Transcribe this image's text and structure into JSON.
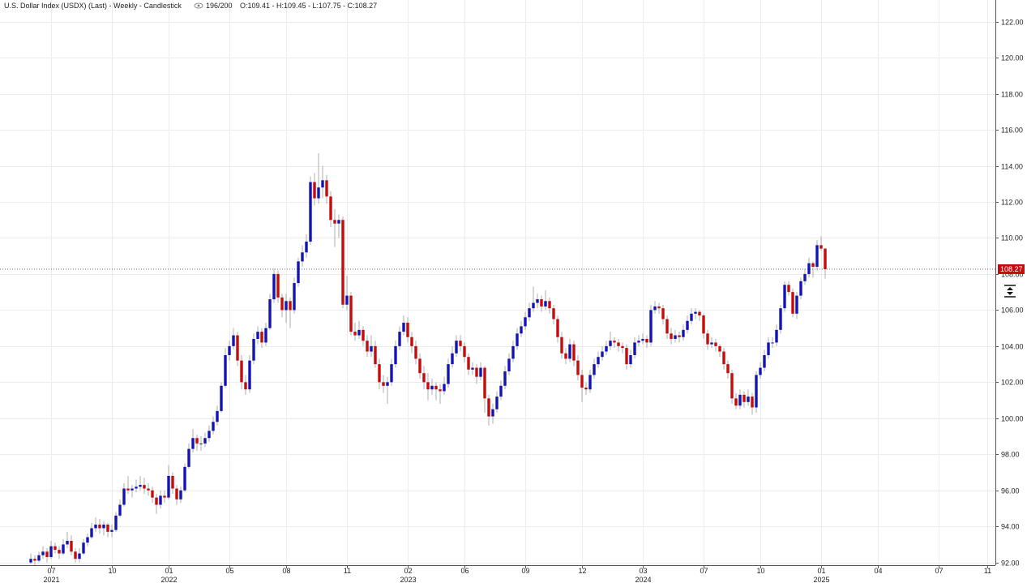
{
  "chart_data": {
    "type": "candlestick",
    "title": "U.S. Dollar Index (USDX)  (Last) - Weekly - Candlestick",
    "counter": "196/200",
    "ohlc_summary": "O:109.41 - H:109.45 - L:107.75 - C:108.27",
    "up_color": "#1414b4",
    "down_color": "#c40c0c",
    "last_price": 108.27,
    "last_price_color": "#c40c0c",
    "grid": true,
    "ylim": [
      91.85,
      123.2
    ],
    "yticks": [
      {
        "value": 92,
        "label": "92.00"
      },
      {
        "value": 94,
        "label": "94.00"
      },
      {
        "value": 96,
        "label": "96.00"
      },
      {
        "value": 98,
        "label": "98.00"
      },
      {
        "value": 100,
        "label": "100.00"
      },
      {
        "value": 102,
        "label": "102.00"
      },
      {
        "value": 104,
        "label": "104.00"
      },
      {
        "value": 106,
        "label": "106.00"
      },
      {
        "value": 108,
        "label": "108.00"
      },
      {
        "value": 110,
        "label": "110.00"
      },
      {
        "value": 112,
        "label": "112.00"
      },
      {
        "value": 114,
        "label": "114.00"
      },
      {
        "value": 116,
        "label": "116.00"
      },
      {
        "value": 118,
        "label": "118.00"
      },
      {
        "value": 120,
        "label": "120.00"
      },
      {
        "value": 122,
        "label": "122.00"
      }
    ],
    "categories": [
      null,
      null,
      null,
      null,
      null,
      "07\n2021",
      null,
      null,
      null,
      null,
      null,
      null,
      null,
      null,
      null,
      null,
      null,
      null,
      null,
      null,
      "10",
      null,
      null,
      null,
      null,
      null,
      null,
      null,
      null,
      null,
      null,
      null,
      null,
      null,
      "01\n2022",
      null,
      null,
      null,
      null,
      null,
      null,
      null,
      null,
      null,
      null,
      null,
      null,
      null,
      null,
      "05",
      null,
      null,
      null,
      null,
      null,
      null,
      null,
      null,
      null,
      null,
      null,
      null,
      null,
      "08",
      null,
      null,
      null,
      null,
      null,
      null,
      null,
      null,
      null,
      null,
      null,
      null,
      null,
      null,
      "11",
      null,
      null,
      null,
      null,
      null,
      null,
      null,
      null,
      null,
      null,
      null,
      null,
      null,
      null,
      "02\n2023",
      null,
      null,
      null,
      null,
      null,
      null,
      null,
      null,
      null,
      null,
      null,
      null,
      null,
      "06",
      null,
      null,
      null,
      null,
      null,
      null,
      null,
      null,
      null,
      null,
      null,
      null,
      null,
      null,
      "09",
      null,
      null,
      null,
      null,
      null,
      null,
      null,
      null,
      null,
      null,
      null,
      null,
      null,
      "12",
      null,
      null,
      null,
      null,
      null,
      null,
      null,
      null,
      null,
      null,
      null,
      null,
      null,
      null,
      "03\n2024",
      null,
      null,
      null,
      null,
      null,
      null,
      null,
      null,
      null,
      null,
      null,
      null,
      null,
      null,
      "07",
      null,
      null,
      null,
      null,
      null,
      null,
      null,
      null,
      null,
      null,
      null,
      null,
      null,
      "10",
      null,
      null,
      null,
      null,
      null,
      null,
      null,
      null,
      null,
      null,
      null,
      null,
      null,
      null,
      "01\n2025",
      null,
      null,
      null,
      null,
      null,
      null,
      null,
      null,
      null,
      null,
      null,
      null,
      null,
      "04",
      null,
      null,
      null,
      null,
      null,
      null,
      null,
      null,
      null,
      null,
      null,
      null,
      null,
      null,
      "07",
      null,
      null,
      null,
      null,
      null,
      null,
      null,
      null,
      null,
      null,
      null,
      "11",
      null,
      null
    ],
    "ohlc": [
      [
        92.0,
        92.5,
        91.9,
        92.2
      ],
      [
        92.2,
        92.4,
        91.8,
        92.1
      ],
      [
        92.1,
        92.6,
        92.0,
        92.4
      ],
      [
        92.4,
        92.9,
        92.2,
        92.6
      ],
      [
        92.6,
        92.8,
        92.0,
        92.3
      ],
      [
        92.3,
        93.2,
        92.2,
        92.9
      ],
      [
        92.9,
        93.1,
        92.5,
        92.7
      ],
      [
        92.7,
        92.9,
        92.2,
        92.5
      ],
      [
        92.5,
        93.3,
        92.4,
        93.0
      ],
      [
        93.0,
        93.7,
        92.8,
        93.2
      ],
      [
        93.2,
        93.5,
        92.4,
        92.6
      ],
      [
        92.6,
        92.8,
        92.0,
        92.2
      ],
      [
        92.2,
        92.8,
        92.0,
        92.5
      ],
      [
        92.5,
        93.3,
        92.4,
        93.1
      ],
      [
        93.1,
        93.6,
        92.9,
        93.4
      ],
      [
        93.4,
        94.2,
        93.3,
        93.9
      ],
      [
        93.9,
        94.5,
        93.7,
        94.1
      ],
      [
        94.1,
        94.4,
        93.6,
        93.9
      ],
      [
        93.9,
        94.3,
        93.5,
        94.1
      ],
      [
        94.1,
        94.2,
        93.4,
        93.7
      ],
      [
        93.7,
        94.1,
        93.4,
        93.8
      ],
      [
        93.8,
        94.8,
        93.7,
        94.6
      ],
      [
        94.6,
        95.5,
        94.5,
        95.2
      ],
      [
        95.2,
        96.4,
        95.1,
        96.1
      ],
      [
        96.1,
        96.8,
        95.8,
        96.0
      ],
      [
        96.0,
        96.3,
        95.6,
        96.1
      ],
      [
        96.1,
        96.6,
        95.9,
        96.2
      ],
      [
        96.2,
        96.8,
        96.0,
        96.3
      ],
      [
        96.3,
        96.7,
        95.8,
        96.1
      ],
      [
        96.1,
        96.4,
        95.7,
        96.0
      ],
      [
        96.0,
        96.2,
        95.3,
        95.6
      ],
      [
        95.6,
        95.8,
        94.7,
        95.2
      ],
      [
        95.2,
        96.0,
        95.0,
        95.7
      ],
      [
        95.7,
        96.0,
        95.3,
        95.6
      ],
      [
        95.6,
        97.4,
        95.5,
        96.8
      ],
      [
        96.8,
        97.0,
        95.8,
        96.1
      ],
      [
        96.1,
        96.3,
        95.2,
        95.5
      ],
      [
        95.5,
        96.2,
        95.3,
        96.0
      ],
      [
        96.0,
        97.5,
        95.9,
        97.3
      ],
      [
        97.3,
        98.6,
        97.2,
        98.3
      ],
      [
        98.3,
        99.4,
        98.1,
        98.9
      ],
      [
        98.9,
        99.1,
        98.2,
        98.6
      ],
      [
        98.6,
        99.0,
        98.2,
        98.6
      ],
      [
        98.6,
        99.2,
        98.4,
        98.9
      ],
      [
        98.9,
        99.6,
        98.7,
        99.3
      ],
      [
        99.3,
        100.1,
        99.1,
        99.8
      ],
      [
        99.8,
        100.7,
        99.6,
        100.4
      ],
      [
        100.4,
        102.0,
        100.3,
        101.8
      ],
      [
        101.8,
        103.9,
        101.7,
        103.5
      ],
      [
        103.5,
        104.3,
        103.2,
        104.0
      ],
      [
        104.0,
        105.0,
        103.8,
        104.6
      ],
      [
        104.6,
        104.8,
        102.9,
        103.2
      ],
      [
        103.2,
        103.5,
        101.6,
        102.0
      ],
      [
        102.0,
        102.4,
        101.3,
        101.6
      ],
      [
        101.6,
        103.5,
        101.4,
        103.2
      ],
      [
        103.2,
        104.7,
        103.0,
        104.4
      ],
      [
        104.4,
        105.1,
        104.1,
        104.8
      ],
      [
        104.8,
        105.0,
        103.9,
        104.2
      ],
      [
        104.2,
        105.3,
        104.0,
        105.0
      ],
      [
        105.0,
        106.9,
        104.9,
        106.6
      ],
      [
        106.6,
        108.3,
        106.4,
        108.0
      ],
      [
        108.0,
        108.2,
        106.4,
        106.7
      ],
      [
        106.7,
        106.9,
        105.6,
        106.0
      ],
      [
        106.0,
        106.9,
        105.3,
        106.5
      ],
      [
        106.5,
        106.7,
        105.0,
        106.0
      ],
      [
        106.0,
        107.8,
        105.8,
        107.5
      ],
      [
        107.5,
        108.9,
        107.3,
        108.7
      ],
      [
        108.7,
        109.6,
        108.4,
        109.2
      ],
      [
        109.2,
        110.2,
        108.9,
        109.8
      ],
      [
        109.8,
        113.4,
        109.6,
        113.1
      ],
      [
        113.1,
        113.6,
        111.8,
        112.2
      ],
      [
        112.2,
        114.7,
        111.9,
        112.8
      ],
      [
        112.8,
        114.0,
        112.2,
        113.2
      ],
      [
        113.2,
        113.5,
        111.9,
        112.3
      ],
      [
        112.3,
        112.6,
        110.6,
        111.0
      ],
      [
        111.0,
        111.6,
        109.5,
        110.8
      ],
      [
        110.8,
        111.3,
        110.0,
        111.0
      ],
      [
        111.0,
        111.2,
        106.1,
        106.3
      ],
      [
        106.3,
        107.9,
        106.0,
        106.8
      ],
      [
        106.8,
        107.0,
        104.6,
        104.8
      ],
      [
        104.8,
        105.3,
        104.3,
        104.6
      ],
      [
        104.6,
        105.4,
        104.4,
        104.9
      ],
      [
        104.9,
        105.1,
        104.0,
        104.3
      ],
      [
        104.3,
        104.6,
        103.4,
        103.7
      ],
      [
        103.7,
        104.6,
        103.4,
        104.0
      ],
      [
        104.0,
        104.3,
        102.8,
        103.0
      ],
      [
        103.0,
        103.3,
        101.6,
        102.0
      ],
      [
        102.0,
        102.4,
        101.4,
        101.8
      ],
      [
        101.8,
        102.3,
        100.8,
        102.0
      ],
      [
        102.0,
        103.3,
        101.8,
        103.0
      ],
      [
        103.0,
        104.3,
        102.8,
        104.0
      ],
      [
        104.0,
        105.1,
        103.8,
        104.8
      ],
      [
        104.8,
        105.7,
        104.6,
        105.3
      ],
      [
        105.3,
        105.6,
        104.2,
        104.5
      ],
      [
        104.5,
        104.8,
        103.6,
        104.0
      ],
      [
        104.0,
        104.3,
        103.0,
        103.3
      ],
      [
        103.3,
        103.6,
        102.2,
        102.5
      ],
      [
        102.5,
        102.9,
        101.6,
        102.0
      ],
      [
        102.0,
        102.5,
        101.0,
        101.6
      ],
      [
        101.6,
        102.2,
        101.3,
        101.8
      ],
      [
        101.8,
        102.0,
        101.0,
        101.6
      ],
      [
        101.6,
        101.9,
        100.8,
        101.5
      ],
      [
        101.5,
        102.3,
        101.3,
        101.9
      ],
      [
        101.9,
        103.3,
        101.7,
        103.0
      ],
      [
        103.0,
        104.0,
        102.8,
        103.6
      ],
      [
        103.6,
        104.6,
        103.4,
        104.3
      ],
      [
        104.3,
        104.6,
        103.7,
        104.0
      ],
      [
        104.0,
        104.2,
        103.1,
        103.4
      ],
      [
        103.4,
        103.6,
        102.4,
        102.7
      ],
      [
        102.7,
        103.1,
        102.4,
        102.8
      ],
      [
        102.8,
        103.0,
        101.9,
        102.3
      ],
      [
        102.3,
        103.1,
        102.1,
        102.8
      ],
      [
        102.8,
        102.9,
        100.3,
        101.1
      ],
      [
        101.1,
        101.3,
        99.6,
        100.1
      ],
      [
        100.1,
        100.8,
        99.7,
        100.5
      ],
      [
        100.5,
        101.5,
        100.3,
        101.2
      ],
      [
        101.2,
        102.1,
        101.0,
        101.8
      ],
      [
        101.8,
        102.9,
        101.6,
        102.6
      ],
      [
        102.6,
        103.6,
        102.4,
        103.3
      ],
      [
        103.3,
        104.3,
        103.1,
        104.0
      ],
      [
        104.0,
        105.0,
        103.8,
        104.7
      ],
      [
        104.7,
        105.4,
        104.5,
        105.1
      ],
      [
        105.1,
        105.9,
        104.9,
        105.6
      ],
      [
        105.6,
        106.4,
        105.4,
        106.1
      ],
      [
        106.1,
        107.3,
        105.9,
        106.4
      ],
      [
        106.4,
        106.9,
        106.1,
        106.6
      ],
      [
        106.6,
        106.8,
        105.9,
        106.2
      ],
      [
        106.2,
        107.1,
        106.0,
        106.5
      ],
      [
        106.5,
        106.7,
        105.8,
        106.1
      ],
      [
        106.1,
        106.3,
        105.2,
        105.5
      ],
      [
        105.5,
        105.7,
        104.2,
        104.5
      ],
      [
        104.5,
        104.8,
        103.3,
        103.6
      ],
      [
        103.6,
        103.9,
        103.0,
        103.3
      ],
      [
        103.3,
        104.4,
        103.1,
        104.1
      ],
      [
        104.1,
        104.3,
        102.9,
        103.2
      ],
      [
        103.2,
        103.5,
        102.1,
        102.4
      ],
      [
        102.4,
        102.7,
        100.9,
        101.7
      ],
      [
        101.7,
        102.0,
        101.3,
        101.6
      ],
      [
        101.6,
        102.7,
        101.4,
        102.4
      ],
      [
        102.4,
        103.3,
        102.2,
        103.0
      ],
      [
        103.0,
        103.7,
        102.8,
        103.4
      ],
      [
        103.4,
        104.0,
        103.2,
        103.7
      ],
      [
        103.7,
        104.3,
        103.5,
        104.0
      ],
      [
        104.0,
        104.8,
        103.8,
        104.3
      ],
      [
        104.3,
        104.5,
        103.9,
        104.2
      ],
      [
        104.2,
        104.4,
        103.7,
        104.0
      ],
      [
        104.0,
        104.2,
        103.6,
        103.9
      ],
      [
        103.9,
        104.1,
        102.7,
        103.0
      ],
      [
        103.0,
        103.8,
        102.8,
        103.5
      ],
      [
        103.5,
        104.5,
        103.3,
        104.2
      ],
      [
        104.2,
        104.6,
        104.0,
        104.3
      ],
      [
        104.3,
        104.7,
        104.1,
        104.4
      ],
      [
        104.4,
        104.6,
        103.9,
        104.2
      ],
      [
        104.2,
        106.3,
        104.0,
        106.0
      ],
      [
        106.0,
        106.5,
        105.8,
        106.2
      ],
      [
        106.2,
        106.4,
        105.8,
        106.1
      ],
      [
        106.1,
        106.3,
        105.2,
        105.5
      ],
      [
        105.5,
        105.7,
        104.4,
        104.7
      ],
      [
        104.7,
        105.0,
        104.1,
        104.4
      ],
      [
        104.4,
        104.9,
        104.2,
        104.6
      ],
      [
        104.6,
        104.8,
        104.2,
        104.5
      ],
      [
        104.5,
        105.2,
        104.3,
        104.9
      ],
      [
        104.9,
        105.7,
        104.7,
        105.4
      ],
      [
        105.4,
        106.1,
        105.2,
        105.8
      ],
      [
        105.8,
        106.1,
        105.5,
        105.9
      ],
      [
        105.9,
        106.0,
        105.4,
        105.7
      ],
      [
        105.7,
        105.8,
        104.4,
        104.7
      ],
      [
        104.7,
        104.9,
        103.8,
        104.1
      ],
      [
        104.1,
        104.5,
        103.9,
        104.2
      ],
      [
        104.2,
        104.4,
        103.7,
        104.0
      ],
      [
        104.0,
        104.1,
        103.4,
        103.7
      ],
      [
        103.7,
        103.9,
        102.7,
        103.0
      ],
      [
        103.0,
        103.2,
        102.2,
        102.5
      ],
      [
        102.5,
        102.7,
        100.8,
        101.1
      ],
      [
        101.1,
        101.4,
        100.5,
        100.7
      ],
      [
        100.7,
        101.6,
        100.5,
        101.3
      ],
      [
        101.3,
        101.5,
        100.6,
        100.9
      ],
      [
        100.9,
        101.6,
        100.7,
        101.2
      ],
      [
        101.2,
        101.4,
        100.2,
        100.6
      ],
      [
        100.6,
        102.6,
        100.3,
        102.4
      ],
      [
        102.4,
        103.1,
        102.2,
        102.8
      ],
      [
        102.8,
        103.8,
        102.6,
        103.5
      ],
      [
        103.5,
        104.5,
        103.3,
        104.2
      ],
      [
        104.2,
        104.5,
        103.9,
        104.2
      ],
      [
        104.2,
        105.2,
        104.0,
        104.9
      ],
      [
        104.9,
        106.3,
        104.7,
        106.1
      ],
      [
        106.1,
        107.6,
        105.9,
        107.4
      ],
      [
        107.4,
        107.6,
        106.8,
        107.0
      ],
      [
        107.0,
        107.2,
        105.6,
        105.8
      ],
      [
        105.8,
        107.0,
        105.5,
        106.8
      ],
      [
        106.8,
        107.8,
        106.6,
        107.6
      ],
      [
        107.6,
        108.3,
        107.4,
        108.0
      ],
      [
        108.0,
        108.9,
        107.8,
        108.6
      ],
      [
        108.6,
        108.7,
        107.8,
        108.4
      ],
      [
        108.4,
        109.9,
        108.2,
        109.6
      ],
      [
        109.6,
        110.1,
        109.3,
        109.41
      ],
      [
        109.41,
        109.45,
        107.75,
        108.27
      ],
      null,
      null,
      null,
      null,
      null,
      null,
      null,
      null,
      null,
      null,
      null,
      null,
      null,
      null,
      null,
      null,
      null,
      null,
      null,
      null,
      null,
      null,
      null,
      null,
      null,
      null,
      null,
      null,
      null,
      null,
      null,
      null,
      null,
      null,
      null,
      null,
      null,
      null,
      null,
      null,
      null,
      null
    ]
  }
}
